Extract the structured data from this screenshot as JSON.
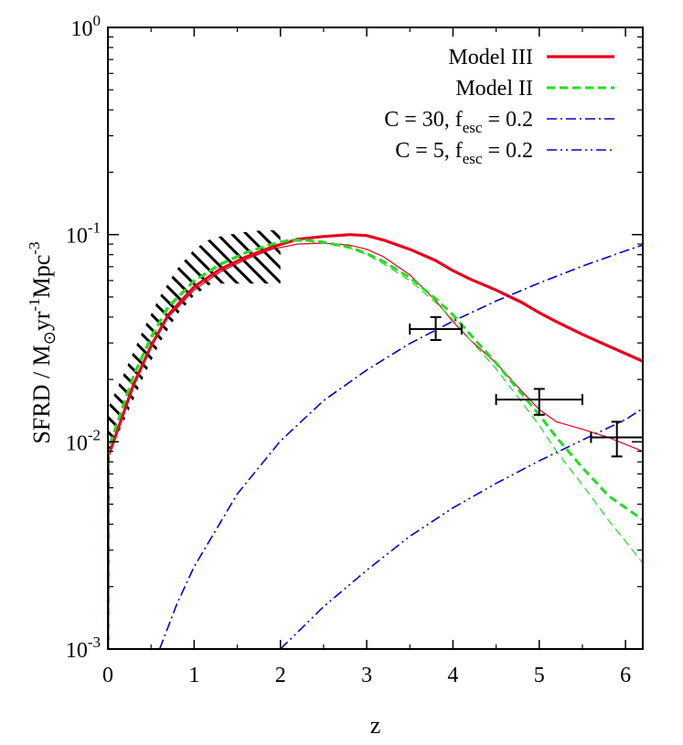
{
  "chart_data": {
    "type": "line",
    "title": "",
    "xlabel": "z",
    "ylabel": "SFRD / M⊙yr⁻¹Mpc⁻³",
    "ylabel_parts": {
      "main": "SFRD / M",
      "sun": "⊙",
      "yr": "yr",
      "yr_exp": "-1",
      "mpc": "Mpc",
      "mpc_exp": "-3"
    },
    "yscale": "log",
    "xlim": [
      0,
      6.2
    ],
    "ylim": [
      0.001,
      1
    ],
    "x_ticks": [
      0,
      1,
      2,
      3,
      4,
      5,
      6
    ],
    "x_tick_labels": [
      "0",
      "1",
      "2",
      "3",
      "4",
      "5",
      "6"
    ],
    "y_ticks": [
      0.001,
      0.01,
      0.1,
      1
    ],
    "y_tick_labels": [
      {
        "base": "10",
        "exp": "-3"
      },
      {
        "base": "10",
        "exp": "-2"
      },
      {
        "base": "10",
        "exp": "-1"
      },
      {
        "base": "10",
        "exp": "0"
      }
    ],
    "legend_position": "top-right",
    "series": [
      {
        "name": "Model III",
        "legend": {
          "main": "Model III"
        },
        "color": "#e8001c",
        "style": "solid",
        "weight": "thick",
        "x": [
          0,
          0.005,
          0.05,
          0.1,
          0.2,
          0.3,
          0.5,
          0.7,
          1.0,
          1.3,
          1.6,
          1.9,
          2.2,
          2.5,
          2.8,
          3.0,
          3.2,
          3.5,
          3.8,
          4.0,
          4.2,
          4.5,
          4.8,
          5.0,
          5.2,
          5.5,
          5.8,
          6.2
        ],
        "y": [
          0.001,
          0.0086,
          0.0096,
          0.011,
          0.0145,
          0.019,
          0.029,
          0.041,
          0.056,
          0.068,
          0.078,
          0.087,
          0.095,
          0.098,
          0.1,
          0.099,
          0.094,
          0.085,
          0.075,
          0.067,
          0.061,
          0.054,
          0.047,
          0.042,
          0.038,
          0.033,
          0.029,
          0.0245
        ]
      },
      {
        "name": "Model III (thin)",
        "legend": null,
        "color": "#e8001c",
        "style": "solid",
        "weight": "thin",
        "x": [
          0,
          0.005,
          0.05,
          0.1,
          0.2,
          0.3,
          0.5,
          0.7,
          1.0,
          1.3,
          1.6,
          1.9,
          2.2,
          2.5,
          2.8,
          3.0,
          3.2,
          3.5,
          3.8,
          4.0,
          4.2,
          4.5,
          4.8,
          5.0,
          5.2,
          5.5,
          5.8,
          6.2
        ],
        "y": [
          0.001,
          0.0084,
          0.0094,
          0.0108,
          0.0142,
          0.0185,
          0.0285,
          0.04,
          0.054,
          0.066,
          0.076,
          0.085,
          0.09,
          0.091,
          0.089,
          0.085,
          0.078,
          0.064,
          0.048,
          0.038,
          0.031,
          0.024,
          0.0175,
          0.0143,
          0.0125,
          0.0115,
          0.0105,
          0.009
        ]
      },
      {
        "name": "Model II",
        "legend": {
          "main": "Model II"
        },
        "color": "#22dd22",
        "style": "dashed",
        "weight": "thick",
        "x": [
          0,
          0.005,
          0.05,
          0.1,
          0.2,
          0.3,
          0.5,
          0.7,
          1.0,
          1.3,
          1.6,
          1.9,
          2.1,
          2.3,
          2.5,
          2.8,
          3.0,
          3.2,
          3.5,
          3.8,
          4.0,
          4.2,
          4.5,
          4.8,
          5.0,
          5.2,
          5.5,
          5.8,
          6.2
        ],
        "y": [
          0.001,
          0.009,
          0.0105,
          0.012,
          0.016,
          0.021,
          0.032,
          0.045,
          0.06,
          0.072,
          0.082,
          0.09,
          0.094,
          0.094,
          0.092,
          0.087,
          0.081,
          0.074,
          0.062,
          0.049,
          0.041,
          0.033,
          0.024,
          0.017,
          0.0135,
          0.0105,
          0.0075,
          0.0055,
          0.0042
        ]
      },
      {
        "name": "Model II (thin)",
        "legend": null,
        "color": "#22dd22",
        "style": "dashed",
        "weight": "thin",
        "x": [
          0,
          0.005,
          0.05,
          0.1,
          0.2,
          0.3,
          0.5,
          0.7,
          1.0,
          1.3,
          1.6,
          1.9,
          2.1,
          2.3,
          2.5,
          2.8,
          3.0,
          3.2,
          3.5,
          3.8,
          4.0,
          4.2,
          4.5,
          4.8,
          5.0,
          5.2,
          5.5,
          5.8,
          6.2
        ],
        "y": [
          0.001,
          0.0088,
          0.0103,
          0.0118,
          0.0157,
          0.0205,
          0.031,
          0.044,
          0.059,
          0.071,
          0.081,
          0.089,
          0.093,
          0.093,
          0.091,
          0.086,
          0.08,
          0.072,
          0.06,
          0.047,
          0.039,
          0.031,
          0.0225,
          0.0155,
          0.012,
          0.009,
          0.0062,
          0.0042,
          0.0026
        ]
      },
      {
        "name": "C = 30, fesc = 0.2",
        "legend": {
          "main": "C = 30, f",
          "sub": "esc",
          "tail": " = 0.2"
        },
        "color": "#0000cc",
        "style": "dashdot",
        "weight": "thin",
        "x": [
          0.6,
          0.8,
          1.0,
          1.5,
          2.0,
          2.5,
          3.0,
          3.5,
          4.0,
          4.5,
          5.0,
          5.5,
          6.0,
          6.2
        ],
        "y": [
          0.001,
          0.00165,
          0.0025,
          0.0056,
          0.0101,
          0.0158,
          0.0222,
          0.0298,
          0.0382,
          0.0478,
          0.0584,
          0.0705,
          0.0835,
          0.089
        ]
      },
      {
        "name": "C = 5, fesc = 0.2",
        "legend": {
          "main": "C = 5, f",
          "sub": "esc",
          "tail": " = 0.2"
        },
        "color": "#0000cc",
        "style": "dashdotdot",
        "weight": "thin",
        "x": [
          2.0,
          2.5,
          3.0,
          3.5,
          4.0,
          4.5,
          5.0,
          5.5,
          6.0,
          6.2
        ],
        "y": [
          0.001,
          0.0016,
          0.0024,
          0.0035,
          0.0048,
          0.0063,
          0.0081,
          0.0102,
          0.0128,
          0.0145
        ]
      }
    ],
    "observations": [
      {
        "x": 3.8,
        "y": 0.035,
        "xerr": [
          3.5,
          4.1
        ],
        "yerr": [
          0.031,
          0.04
        ]
      },
      {
        "x": 5.0,
        "y": 0.016,
        "xerr": [
          4.5,
          5.5
        ],
        "yerr": [
          0.0135,
          0.018
        ]
      },
      {
        "x": 5.9,
        "y": 0.0105,
        "xerr": [
          5.6,
          6.2
        ],
        "yerr": [
          0.0085,
          0.0125
        ]
      }
    ],
    "hatched_region": {
      "description": "observed SFRD band",
      "upper": {
        "x": [
          0,
          0.2,
          0.4,
          0.6,
          0.8,
          1.0,
          1.2,
          1.4,
          1.6,
          1.8,
          2.0
        ],
        "y": [
          0.0145,
          0.022,
          0.034,
          0.05,
          0.068,
          0.085,
          0.096,
          0.1,
          0.103,
          0.105,
          0.105
        ]
      },
      "lower": {
        "x": [
          0,
          0.2,
          0.4,
          0.6,
          0.8,
          1.0,
          1.2,
          1.4,
          1.6,
          1.8,
          2.0
        ],
        "y": [
          0.0085,
          0.013,
          0.02,
          0.03,
          0.041,
          0.051,
          0.058,
          0.058,
          0.058,
          0.058,
          0.058
        ]
      }
    }
  }
}
